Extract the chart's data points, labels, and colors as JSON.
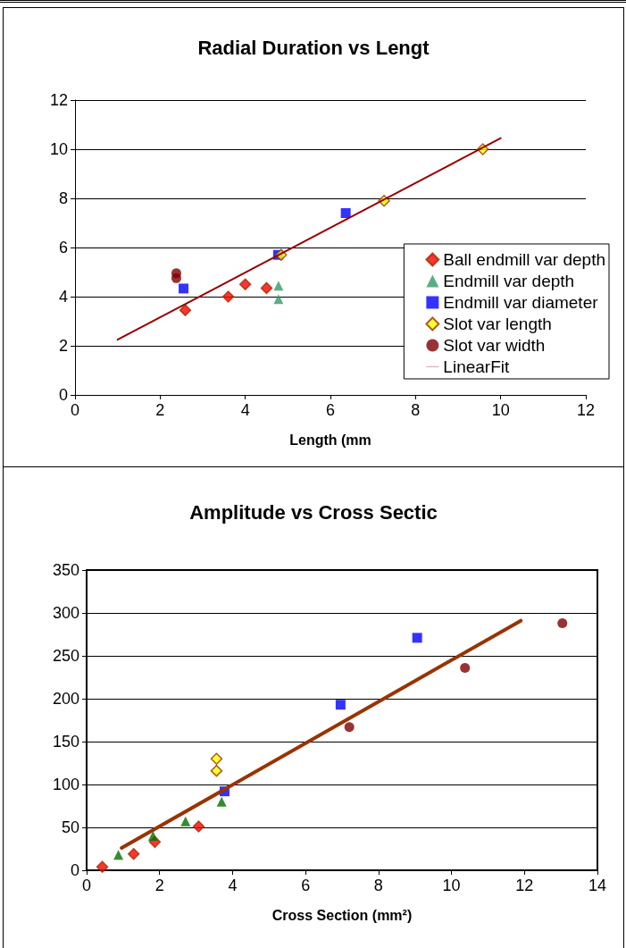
{
  "chart_data": [
    {
      "type": "scatter",
      "title": "Radial Duration vs Lengt",
      "xlabel": "Length (mm",
      "xlim": [
        0,
        12
      ],
      "xticks": [
        0,
        2,
        4,
        6,
        8,
        10,
        12
      ],
      "ylim": [
        0,
        12
      ],
      "yticks": [
        0,
        2,
        4,
        6,
        8,
        10,
        12
      ],
      "grid": "y",
      "legend": "bottom right",
      "series": [
        {
          "name": "Ball endmill var depth",
          "color": "#ff0000",
          "marker": "diamond",
          "x": [
            2.59,
            3.6,
            4.0,
            4.5
          ],
          "values": [
            3.45,
            4.0,
            4.5,
            4.35
          ]
        },
        {
          "name": "Endmill var depth",
          "color": "#339966",
          "marker": "triangle",
          "x": [
            4.78,
            4.78
          ],
          "values": [
            4.45,
            3.9
          ]
        },
        {
          "name": "Endmill var diameter",
          "color": "#0000ff",
          "marker": "square",
          "x": [
            2.55,
            4.77,
            6.36
          ],
          "values": [
            4.33,
            5.7,
            7.4
          ]
        },
        {
          "name": "Slot var length",
          "color": "#ffff00",
          "marker": "diamond",
          "x": [
            4.84,
            7.26,
            9.58
          ],
          "values": [
            5.7,
            7.9,
            10.0
          ]
        },
        {
          "name": "Slot var width",
          "color": "#800000",
          "marker": "circle",
          "x": [
            2.38,
            2.38
          ],
          "values": [
            4.95,
            4.75
          ]
        },
        {
          "name": "LinearFit",
          "type": "line",
          "color": "#990000",
          "marker": "none",
          "x": [
            1.0,
            10.0
          ],
          "values": [
            2.25,
            10.45
          ]
        }
      ]
    },
    {
      "type": "scatter",
      "title": "Amplitude vs Cross Sectic",
      "xlabel": "Cross Section (mm²)",
      "xlim": [
        0,
        14
      ],
      "xticks": [
        0,
        2,
        4,
        6,
        8,
        10,
        12,
        14
      ],
      "ylim": [
        0,
        350
      ],
      "yticks": [
        0,
        50,
        100,
        150,
        200,
        250,
        300,
        350
      ],
      "grid": "y",
      "series": [
        {
          "color": "#ff0000",
          "marker": "diamond",
          "x": [
            0.43,
            1.29,
            1.87,
            3.07
          ],
          "values": [
            4,
            19,
            33,
            51
          ]
        },
        {
          "color": "#007000",
          "marker": "triangle",
          "x": [
            0.87,
            1.82,
            2.71,
            3.7
          ],
          "values": [
            18,
            40,
            57,
            80
          ]
        },
        {
          "color": "#0000ff",
          "marker": "square",
          "x": [
            3.78,
            6.96,
            9.06
          ],
          "values": [
            92,
            193,
            271
          ]
        },
        {
          "color": "#ffff00",
          "marker": "diamond",
          "x": [
            3.56,
            3.56
          ],
          "values": [
            130,
            116
          ]
        },
        {
          "color": "#800000",
          "marker": "circle",
          "x": [
            7.2,
            10.37,
            13.04
          ],
          "values": [
            167,
            236,
            288
          ]
        },
        {
          "type": "line",
          "color": "#993300",
          "marker": "none",
          "x": [
            0.96,
            11.9
          ],
          "values": [
            26,
            291
          ]
        }
      ]
    }
  ]
}
